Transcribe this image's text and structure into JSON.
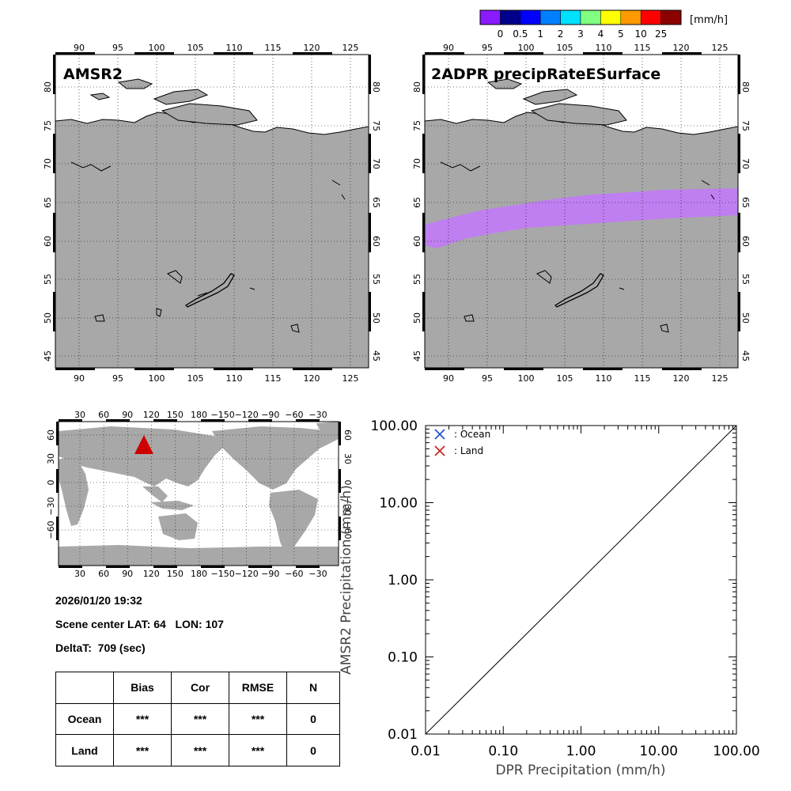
{
  "colorbar": {
    "unit": "[mm/h]",
    "colors": [
      "#8a1aff",
      "#00008c",
      "#0000ff",
      "#0080ff",
      "#00e0ff",
      "#80ff80",
      "#ffff00",
      "#ff9900",
      "#ff0000",
      "#8c0000"
    ],
    "labels": [
      "0",
      "0.5",
      "1",
      "2",
      "3",
      "4",
      "5",
      "10",
      "25"
    ]
  },
  "panels": {
    "left_title": "AMSR2",
    "right_title": "2ADPR precipRateESurface",
    "lon_labels": [
      "90",
      "95",
      "100",
      "105",
      "110",
      "115",
      "120",
      "125"
    ],
    "lat_labels": [
      "45",
      "50",
      "55",
      "60",
      "65",
      "70",
      "75",
      "80"
    ],
    "land_color": "#a8a8a8",
    "swath_color": "#bf7ff0"
  },
  "world_map": {
    "lon_labels": [
      "30",
      "60",
      "90",
      "120",
      "150",
      "180",
      "−150",
      "−120",
      "−90",
      "−60",
      "−30"
    ],
    "lat_labels": [
      "60",
      "30",
      "0",
      "−30",
      "−60"
    ],
    "right_lat_labels": [
      "60",
      "30",
      "0",
      "−30",
      "−60"
    ],
    "marker_color": "#cc0000"
  },
  "info": {
    "datetime": "2026/01/20 19:32",
    "scene_center": "Scene center LAT: 64   LON: 107",
    "deltat": "DeltaT:  709 (sec)"
  },
  "stats_table": {
    "headers": [
      "",
      "Bias",
      "Cor",
      "RMSE",
      "N"
    ],
    "rows": [
      {
        "label": "Ocean",
        "bias": "***",
        "cor": "***",
        "rmse": "***",
        "n": "0"
      },
      {
        "label": "Land",
        "bias": "***",
        "cor": "***",
        "rmse": "***",
        "n": "0"
      }
    ]
  },
  "chart_data": {
    "type": "scatter",
    "title": "",
    "xlabel": "DPR Precipitation (mm/h)",
    "ylabel": "AMSR2 Precipitation (mm/h)",
    "xscale": "log",
    "yscale": "log",
    "xlim": [
      0.01,
      100
    ],
    "ylim": [
      0.01,
      100
    ],
    "x_ticks": [
      "0.01",
      "0.10",
      "1.00",
      "10.00",
      "100.00"
    ],
    "y_ticks": [
      "0.01",
      "0.10",
      "1.00",
      "10.00",
      "100.00"
    ],
    "reference_line": "1:1",
    "legend_position": "top-left",
    "series": [
      {
        "name": ": Ocean",
        "color": "#1f4fd0",
        "points": []
      },
      {
        "name": ": Land",
        "color": "#c81e1e",
        "points": []
      }
    ]
  }
}
